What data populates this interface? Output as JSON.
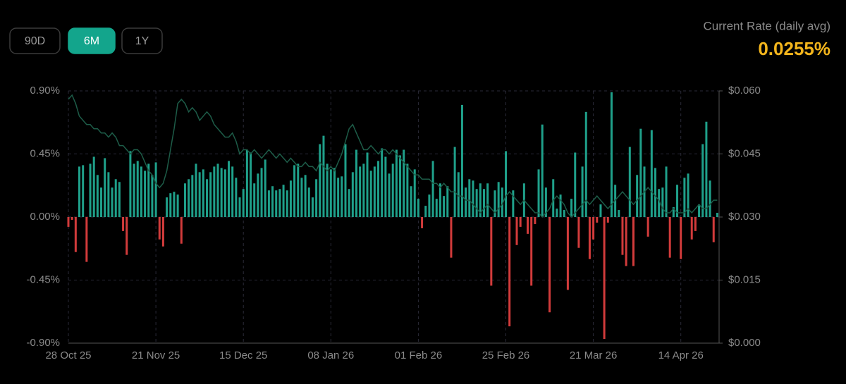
{
  "range_buttons": [
    "90D",
    "6M",
    "1Y"
  ],
  "selected_range": "6M",
  "current_rate": {
    "label": "Current Rate (daily avg)",
    "value": "0.0255%"
  },
  "chart_data": {
    "type": "bar",
    "categories": [
      "28 Oct 25",
      null,
      null,
      null,
      null,
      null,
      null,
      null,
      null,
      null,
      null,
      null,
      null,
      null,
      null,
      null,
      null,
      null,
      null,
      null,
      null,
      null,
      null,
      null,
      "21 Nov 25",
      null,
      null,
      null,
      null,
      null,
      null,
      null,
      null,
      null,
      null,
      null,
      null,
      null,
      null,
      null,
      null,
      null,
      null,
      null,
      null,
      null,
      null,
      null,
      "15 Dec 25",
      null,
      null,
      null,
      null,
      null,
      null,
      null,
      null,
      null,
      null,
      null,
      null,
      null,
      null,
      null,
      null,
      null,
      null,
      null,
      null,
      null,
      null,
      null,
      "08 Jan 26",
      null,
      null,
      null,
      null,
      null,
      null,
      null,
      null,
      null,
      null,
      null,
      null,
      null,
      null,
      null,
      null,
      null,
      null,
      null,
      null,
      null,
      null,
      null,
      "01 Feb 26",
      null,
      null,
      null,
      null,
      null,
      null,
      null,
      null,
      null,
      null,
      null,
      null,
      null,
      null,
      null,
      null,
      null,
      null,
      null,
      null,
      null,
      null,
      null,
      "25 Feb 26",
      null,
      null,
      null,
      null,
      null,
      null,
      null,
      null,
      null,
      null,
      null,
      null,
      null,
      null,
      null,
      null,
      null,
      null,
      null,
      null,
      null,
      null,
      null,
      "21 Mar 26",
      null,
      null,
      null,
      null,
      null,
      null,
      null,
      null,
      null,
      null,
      null,
      null,
      null,
      null,
      null,
      null,
      null,
      null,
      null,
      null,
      null,
      null,
      null,
      "14 Apr 26",
      null,
      null,
      null,
      null,
      null,
      null,
      null,
      null,
      null,
      null
    ],
    "series": [
      {
        "type": "bar",
        "color": "#1fa08a",
        "negative_color": "#d23b3b",
        "values": [
          -0.07,
          -0.02,
          -0.25,
          0.36,
          0.37,
          -0.32,
          0.38,
          0.43,
          0.3,
          0.21,
          0.42,
          0.32,
          0.21,
          0.27,
          0.25,
          -0.1,
          -0.27,
          0.47,
          0.38,
          0.4,
          0.36,
          0.33,
          0.38,
          0.3,
          0.39,
          -0.16,
          -0.21,
          0.14,
          0.17,
          0.18,
          0.16,
          -0.19,
          0.24,
          0.27,
          0.3,
          0.38,
          0.32,
          0.34,
          0.27,
          0.32,
          0.36,
          0.38,
          0.35,
          0.34,
          0.4,
          0.36,
          0.28,
          0.14,
          0.2,
          0.48,
          0.46,
          0.24,
          0.31,
          0.35,
          0.41,
          0.19,
          0.22,
          0.19,
          0.2,
          0.23,
          0.19,
          0.26,
          0.37,
          0.38,
          0.28,
          0.3,
          0.21,
          0.14,
          0.27,
          0.52,
          0.58,
          0.38,
          0.34,
          0.35,
          0.28,
          0.29,
          0.52,
          0.2,
          0.32,
          0.48,
          0.36,
          0.38,
          0.46,
          0.33,
          0.36,
          0.4,
          0.49,
          0.43,
          0.31,
          0.38,
          0.48,
          0.44,
          0.48,
          0.38,
          0.22,
          0.34,
          0.13,
          -0.08,
          0.08,
          0.16,
          0.4,
          0.13,
          0.24,
          0.15,
          0.22,
          -0.29,
          0.5,
          0.32,
          0.8,
          0.21,
          0.27,
          0.26,
          0.2,
          0.24,
          0.2,
          0.24,
          -0.49,
          0.19,
          0.25,
          0.21,
          0.47,
          -0.78,
          0.19,
          -0.2,
          -0.07,
          0.24,
          -0.12,
          -0.49,
          -0.05,
          0.34,
          0.66,
          0.21,
          -0.68,
          0.27,
          0.06,
          0.16,
          0.05,
          -0.52,
          0.13,
          0.46,
          -0.22,
          0.36,
          0.75,
          -0.3,
          -0.16,
          -0.04,
          0.09,
          -0.87,
          -0.04,
          0.89,
          0.23,
          0.05,
          -0.27,
          -0.35,
          0.5,
          -0.35,
          0.3,
          0.63,
          0.36,
          -0.14,
          0.62,
          0.35,
          0.2,
          0.21,
          0.36,
          -0.29,
          0.07,
          0.23,
          -0.3,
          0.28,
          0.31,
          -0.16,
          -0.1,
          0.09,
          0.52,
          0.68,
          0.26,
          -0.18,
          0.03
        ]
      },
      {
        "type": "line",
        "axis": "y2",
        "color": "#1d5c48",
        "values": [
          0.058,
          0.059,
          0.057,
          0.054,
          0.053,
          0.052,
          0.052,
          0.051,
          0.051,
          0.05,
          0.05,
          0.049,
          0.05,
          0.049,
          0.047,
          0.047,
          0.046,
          0.045,
          0.046,
          0.046,
          0.045,
          0.043,
          0.041,
          0.04,
          0.038,
          0.037,
          0.038,
          0.041,
          0.046,
          0.051,
          0.057,
          0.058,
          0.057,
          0.055,
          0.056,
          0.055,
          0.053,
          0.054,
          0.055,
          0.054,
          0.052,
          0.051,
          0.05,
          0.049,
          0.049,
          0.05,
          0.048,
          0.045,
          0.046,
          0.046,
          0.045,
          0.046,
          0.045,
          0.044,
          0.045,
          0.046,
          0.045,
          0.044,
          0.045,
          0.044,
          0.043,
          0.044,
          0.043,
          0.042,
          0.042,
          0.043,
          0.042,
          0.042,
          0.041,
          0.043,
          0.042,
          0.041,
          0.042,
          0.041,
          0.043,
          0.045,
          0.048,
          0.051,
          0.052,
          0.05,
          0.048,
          0.046,
          0.046,
          0.047,
          0.046,
          0.045,
          0.046,
          0.046,
          0.045,
          0.046,
          0.045,
          0.044,
          0.043,
          0.042,
          0.041,
          0.04,
          0.04,
          0.039,
          0.039,
          0.039,
          0.038,
          0.038,
          0.037,
          0.038,
          0.037,
          0.036,
          0.036,
          0.035,
          0.035,
          0.034,
          0.034,
          0.033,
          0.032,
          0.031,
          0.032,
          0.033,
          0.032,
          0.031,
          0.032,
          0.033,
          0.035,
          0.036,
          0.035,
          0.034,
          0.033,
          0.034,
          0.033,
          0.032,
          0.031,
          0.031,
          0.03,
          0.031,
          0.032,
          0.034,
          0.035,
          0.034,
          0.033,
          0.031,
          0.03,
          0.031,
          0.032,
          0.033,
          0.034,
          0.033,
          0.034,
          0.035,
          0.034,
          0.033,
          0.032,
          0.033,
          0.034,
          0.035,
          0.036,
          0.035,
          0.034,
          0.033,
          0.034,
          0.035,
          0.036,
          0.037,
          0.036,
          0.035,
          0.034,
          0.032,
          0.031,
          0.031,
          0.032,
          0.031,
          0.031,
          0.031,
          0.032,
          0.031,
          0.032,
          0.033,
          0.032,
          0.032,
          0.033,
          0.034,
          0.034
        ]
      }
    ],
    "ylim": [
      -0.9,
      0.9
    ],
    "yticks": [
      {
        "value": -0.9,
        "label": "-0.90%"
      },
      {
        "value": -0.45,
        "label": "-0.45%"
      },
      {
        "value": 0,
        "label": "0.00%"
      },
      {
        "value": 0.45,
        "label": "0.45%"
      },
      {
        "value": 0.9,
        "label": "0.90%"
      }
    ],
    "y2lim": [
      0,
      0.06
    ],
    "y2ticks": [
      {
        "value": 0,
        "label": "$0.000"
      },
      {
        "value": 0.015,
        "label": "$0.015"
      },
      {
        "value": 0.03,
        "label": "$0.030"
      },
      {
        "value": 0.045,
        "label": "$0.045"
      },
      {
        "value": 0.06,
        "label": "$0.060"
      }
    ],
    "grid": true
  }
}
